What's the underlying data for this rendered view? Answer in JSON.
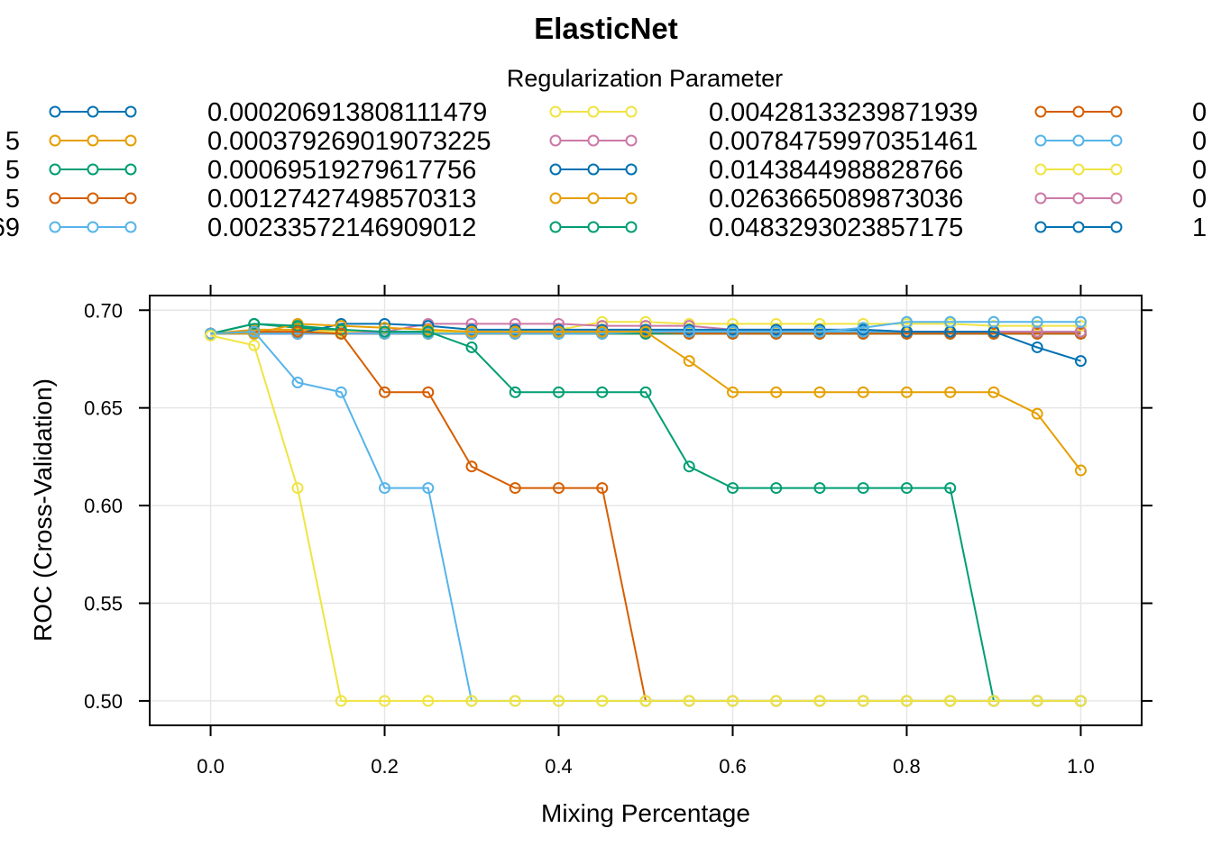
{
  "chart_data": {
    "type": "line",
    "title": "ElasticNet",
    "xlabel": "Mixing Percentage",
    "ylabel": "ROC (Cross-Validation)",
    "legend_title": "Regularization Parameter",
    "legend_placement": "top",
    "grid": true,
    "xlim": [
      -0.07,
      1.07
    ],
    "ylim": [
      0.4875,
      0.7075
    ],
    "x_ticks": [
      "0.0",
      "0.2",
      "0.4",
      "0.6",
      "0.8",
      "1.0"
    ],
    "y_ticks": [
      "0.50",
      "0.55",
      "0.60",
      "0.65",
      "0.70"
    ],
    "x": [
      0,
      0.05,
      0.1,
      0.15,
      0.2,
      0.25,
      0.3,
      0.35,
      0.4,
      0.45,
      0.5,
      0.55,
      0.6,
      0.65,
      0.7,
      0.75,
      0.8,
      0.85,
      0.9,
      0.95,
      1.0
    ],
    "legend_columns": [
      {
        "entries": [
          {
            "label": "",
            "color": "#0072B2"
          },
          {
            "label": "5",
            "color": "#E69F00"
          },
          {
            "label": "5",
            "color": "#009E73"
          },
          {
            "label": "5",
            "color": "#D55E00"
          },
          {
            "label": "69",
            "color": "#56B4E9"
          }
        ]
      },
      {
        "entries": [
          {
            "label": "0.000206913808111479",
            "color": "#F0E442"
          },
          {
            "label": "0.000379269019073225",
            "color": "#CC79A7"
          },
          {
            "label": "0.00069519279617756",
            "color": "#0072B2"
          },
          {
            "label": "0.00127427498570313",
            "color": "#E69F00"
          },
          {
            "label": "0.00233572146909012",
            "color": "#009E73"
          }
        ]
      },
      {
        "entries": [
          {
            "label": "0.00428133239871939",
            "color": "#D55E00"
          },
          {
            "label": "0.00784759970351461",
            "color": "#56B4E9"
          },
          {
            "label": "0.0143844988828766",
            "color": "#F0E442"
          },
          {
            "label": "0.0263665089873036",
            "color": "#CC79A7"
          },
          {
            "label": "0.0483293023857175",
            "color": "#0072B2"
          }
        ]
      },
      {
        "entries": [
          {
            "label": "0",
            "color": null
          },
          {
            "label": "0",
            "color": null
          },
          {
            "label": "0",
            "color": null
          },
          {
            "label": "0",
            "color": null
          },
          {
            "label": "1",
            "color": null
          }
        ]
      }
    ],
    "series": [
      {
        "color": "#0072B2",
        "values": [
          0.688,
          0.688,
          0.688,
          0.688,
          0.688,
          0.688,
          0.688,
          0.688,
          0.688,
          0.688,
          0.688,
          0.688,
          0.688,
          0.688,
          0.688,
          0.688,
          0.688,
          0.688,
          0.688,
          0.688,
          0.688
        ]
      },
      {
        "color": "#E69F00",
        "values": [
          0.688,
          0.688,
          0.688,
          0.688,
          0.688,
          0.688,
          0.688,
          0.688,
          0.688,
          0.688,
          0.688,
          0.688,
          0.688,
          0.688,
          0.688,
          0.688,
          0.688,
          0.688,
          0.688,
          0.688,
          0.688
        ]
      },
      {
        "color": "#009E73",
        "values": [
          0.688,
          0.688,
          0.688,
          0.688,
          0.688,
          0.688,
          0.688,
          0.688,
          0.688,
          0.688,
          0.688,
          0.688,
          0.688,
          0.688,
          0.688,
          0.688,
          0.688,
          0.688,
          0.688,
          0.688,
          0.688
        ]
      },
      {
        "color": "#D55E00",
        "values": [
          0.688,
          0.688,
          0.688,
          0.688,
          0.688,
          0.688,
          0.688,
          0.688,
          0.688,
          0.688,
          0.688,
          0.688,
          0.688,
          0.688,
          0.688,
          0.688,
          0.688,
          0.688,
          0.688,
          0.688,
          0.688
        ]
      },
      {
        "color": "#56B4E9",
        "values": [
          0.688,
          0.688,
          0.688,
          0.688,
          0.688,
          0.688,
          0.688,
          0.688,
          0.688,
          0.688,
          0.688,
          0.688,
          0.688,
          0.688,
          0.688,
          0.688,
          0.688,
          0.688,
          0.688,
          0.688,
          0.688
        ]
      },
      {
        "color": "#F0E442",
        "values": [
          0.688,
          0.688,
          0.688,
          0.688,
          0.688,
          0.688,
          0.688,
          0.688,
          0.688,
          0.688,
          0.688,
          0.688,
          0.688,
          0.688,
          0.688,
          0.688,
          0.688,
          0.688,
          0.688,
          0.688,
          0.688
        ]
      },
      {
        "color": "#CC79A7",
        "values": [
          0.688,
          0.688,
          0.688,
          0.688,
          0.688,
          0.688,
          0.688,
          0.688,
          0.688,
          0.688,
          0.688,
          0.688,
          0.688,
          0.688,
          0.688,
          0.688,
          0.688,
          0.688,
          0.688,
          0.688,
          0.688
        ]
      },
      {
        "color": "#0072B2",
        "values": [
          0.688,
          0.688,
          0.688,
          0.688,
          0.688,
          0.688,
          0.688,
          0.688,
          0.688,
          0.688,
          0.688,
          0.688,
          0.688,
          0.688,
          0.688,
          0.688,
          0.688,
          0.688,
          0.688,
          0.688,
          0.688
        ]
      },
      {
        "color": "#E69F00",
        "values": [
          0.688,
          0.69,
          0.69,
          0.69,
          0.688,
          0.688,
          0.688,
          0.688,
          0.688,
          0.688,
          0.688,
          0.688,
          0.688,
          0.688,
          0.688,
          0.688,
          0.688,
          0.688,
          0.688,
          0.688,
          0.688
        ]
      },
      {
        "color": "#009E73",
        "values": [
          0.688,
          0.693,
          0.691,
          0.69,
          0.688,
          0.688,
          0.688,
          0.688,
          0.688,
          0.688,
          0.688,
          0.688,
          0.688,
          0.688,
          0.688,
          0.688,
          0.688,
          0.688,
          0.688,
          0.688,
          0.688
        ]
      },
      {
        "color": "#D55E00",
        "values": [
          0.688,
          0.688,
          0.688,
          0.688,
          0.688,
          0.688,
          0.688,
          0.688,
          0.689,
          0.689,
          0.689,
          0.688,
          0.688,
          0.688,
          0.688,
          0.688,
          0.688,
          0.688,
          0.688,
          0.688,
          0.688
        ]
      },
      {
        "color": "#56B4E9",
        "values": [
          0.688,
          0.688,
          0.689,
          0.689,
          0.689,
          0.689,
          0.689,
          0.689,
          0.689,
          0.689,
          0.689,
          0.689,
          0.689,
          0.689,
          0.689,
          0.689,
          0.689,
          0.689,
          0.689,
          0.689,
          0.689
        ]
      },
      {
        "color": "#F0E442",
        "values": [
          0.688,
          0.688,
          0.689,
          0.689,
          0.689,
          0.689,
          0.689,
          0.689,
          0.69,
          0.694,
          0.694,
          0.693,
          0.693,
          0.693,
          0.693,
          0.693,
          0.693,
          0.693,
          0.692,
          0.692,
          0.692
        ]
      },
      {
        "color": "#CC79A7",
        "values": [
          0.688,
          0.688,
          0.688,
          0.688,
          0.689,
          0.693,
          0.693,
          0.693,
          0.693,
          0.692,
          0.692,
          0.692,
          0.69,
          0.69,
          0.69,
          0.69,
          0.689,
          0.689,
          0.689,
          0.689,
          0.689
        ]
      },
      {
        "color": "#0072B2",
        "values": [
          0.688,
          0.688,
          0.688,
          0.693,
          0.693,
          0.692,
          0.69,
          0.69,
          0.69,
          0.69,
          0.69,
          0.69,
          0.69,
          0.69,
          0.69,
          0.69,
          0.689,
          0.689,
          0.689,
          0.681,
          0.674
        ]
      },
      {
        "color": "#56B4E9",
        "values": [
          0.688,
          0.688,
          0.688,
          0.688,
          0.688,
          0.688,
          0.688,
          0.688,
          0.688,
          0.688,
          0.689,
          0.689,
          0.689,
          0.689,
          0.689,
          0.691,
          0.694,
          0.694,
          0.694,
          0.694,
          0.694
        ]
      },
      {
        "color": "#E69F00",
        "values": [
          0.688,
          0.688,
          0.693,
          0.692,
          0.691,
          0.69,
          0.689,
          0.689,
          0.689,
          0.689,
          0.689,
          0.674,
          0.658,
          0.658,
          0.658,
          0.658,
          0.658,
          0.658,
          0.658,
          0.647,
          0.618
        ]
      },
      {
        "color": "#009E73",
        "values": [
          0.688,
          0.693,
          0.692,
          0.69,
          0.689,
          0.689,
          0.681,
          0.658,
          0.658,
          0.658,
          0.658,
          0.62,
          0.609,
          0.609,
          0.609,
          0.609,
          0.609,
          0.609,
          0.5,
          0.5,
          0.5
        ]
      },
      {
        "color": "#D55E00",
        "values": [
          0.688,
          0.689,
          0.689,
          0.688,
          0.658,
          0.658,
          0.62,
          0.609,
          0.609,
          0.609,
          0.5,
          0.5,
          0.5,
          0.5,
          0.5,
          0.5,
          0.5,
          0.5,
          0.5,
          0.5,
          0.5
        ]
      },
      {
        "color": "#56B4E9",
        "values": [
          0.688,
          0.689,
          0.663,
          0.658,
          0.609,
          0.609,
          0.5,
          0.5,
          0.5,
          0.5,
          0.5,
          0.5,
          0.5,
          0.5,
          0.5,
          0.5,
          0.5,
          0.5,
          0.5,
          0.5,
          0.5
        ]
      },
      {
        "color": "#F0E442",
        "values": [
          0.687,
          0.682,
          0.609,
          0.5,
          0.5,
          0.5,
          0.5,
          0.5,
          0.5,
          0.5,
          0.5,
          0.5,
          0.5,
          0.5,
          0.5,
          0.5,
          0.5,
          0.5,
          0.5,
          0.5,
          0.5
        ]
      }
    ]
  }
}
